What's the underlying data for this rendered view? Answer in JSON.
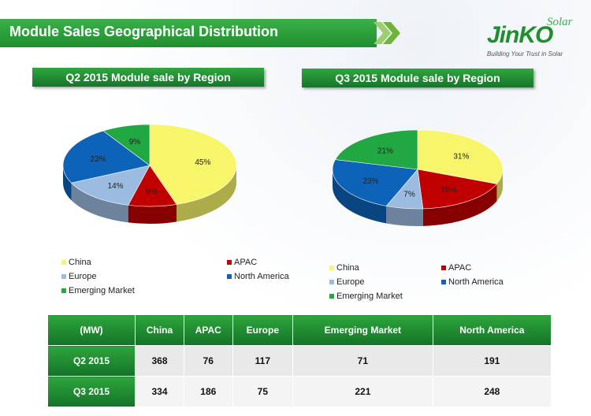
{
  "header": {
    "title": "Module Sales Geographical Distribution"
  },
  "logo": {
    "name": "JinKO",
    "suffix": "Solar",
    "tagline": "Building Your Trust in Solar"
  },
  "colors": {
    "China": "#f7f56a",
    "APAC": "#c00000",
    "Europe": "#9bbbe0",
    "North America": "#0d63b8",
    "Emerging Market": "#22a843",
    "brand_green": "#1f8f2e"
  },
  "chart_data": [
    {
      "type": "pie",
      "title": "Q2 2015 Module sale by Region",
      "labels": [
        "China",
        "APAC",
        "Europe",
        "North America",
        "Emerging Market"
      ],
      "values": [
        45,
        9,
        14,
        23,
        9
      ],
      "value_labels": [
        "45%",
        "9%",
        "14%",
        "23%",
        "9%"
      ],
      "legend_position": "bottom"
    },
    {
      "type": "pie",
      "title": "Q3 2015  Module sale by Region",
      "labels": [
        "China",
        "APAC",
        "Europe",
        "North America",
        "Emerging Market"
      ],
      "values": [
        31,
        18,
        7,
        23,
        21
      ],
      "value_labels": [
        "31%",
        "18%",
        "7%",
        "23%",
        "21%"
      ],
      "legend_position": "bottom"
    },
    {
      "type": "table",
      "columns": [
        "(MW)",
        "China",
        "APAC",
        "Europe",
        "Emerging Market",
        "North America"
      ],
      "rows": [
        {
          "label": "Q2 2015",
          "values": [
            "368",
            "76",
            "117",
            "71",
            "191"
          ]
        },
        {
          "label": "Q3 2015",
          "values": [
            "334",
            "186",
            "75",
            "221",
            "248"
          ]
        }
      ]
    }
  ]
}
